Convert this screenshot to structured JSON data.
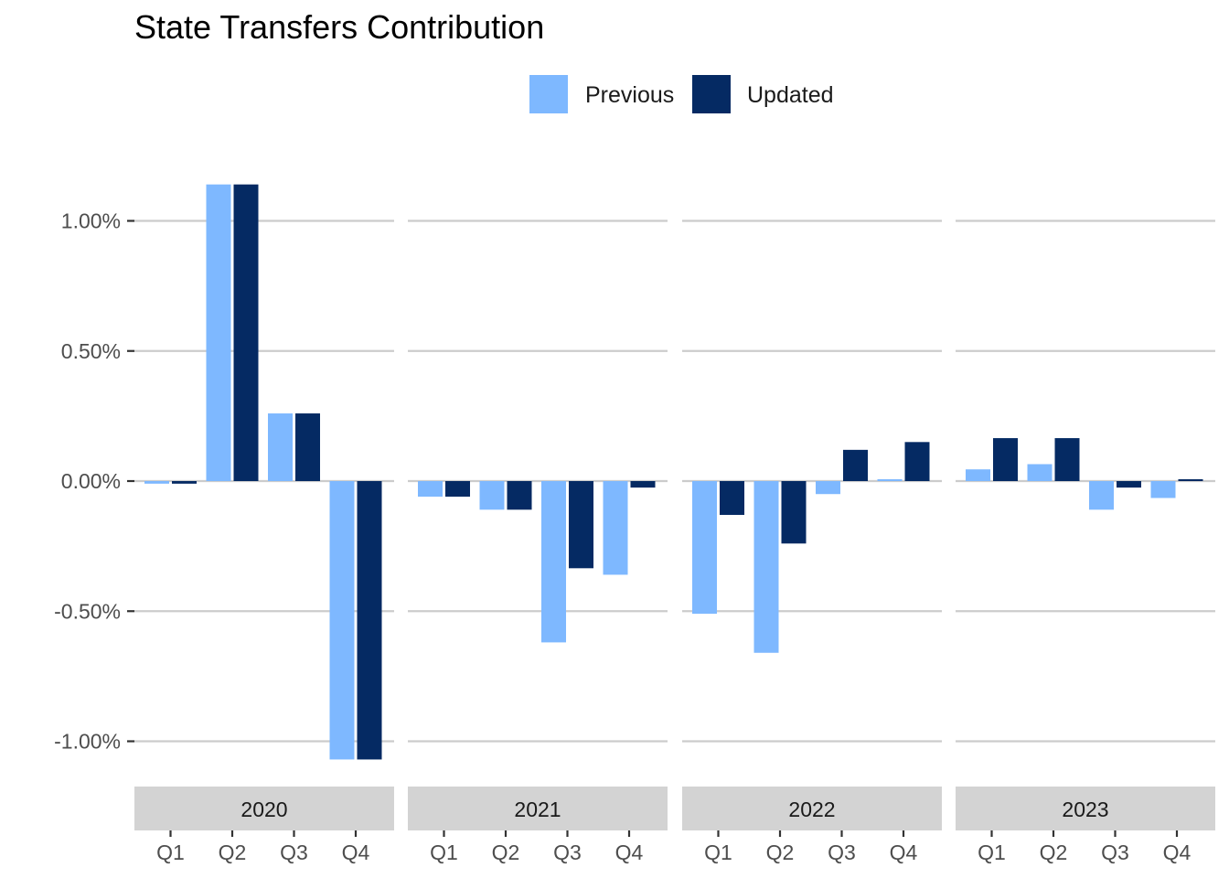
{
  "chart_data": {
    "type": "bar",
    "title": "State Transfers Contribution",
    "xlabel": "",
    "ylabel": "",
    "ylim": [
      -1.15,
      1.3
    ],
    "y_ticks": [
      {
        "value": 1.0,
        "label": "1.00%"
      },
      {
        "value": 0.5,
        "label": "0.50%"
      },
      {
        "value": 0.0,
        "label": "0.00%"
      },
      {
        "value": -0.5,
        "label": "-0.50%"
      },
      {
        "value": -1.0,
        "label": "-1.00%"
      }
    ],
    "grid": true,
    "legend_position": "top",
    "facets": [
      "2020",
      "2021",
      "2022",
      "2023"
    ],
    "categories": [
      "Q1",
      "Q2",
      "Q3",
      "Q4"
    ],
    "series": [
      {
        "name": "Previous",
        "color": "#7eb8ff",
        "values": {
          "2020": [
            -0.01,
            1.14,
            0.26,
            -1.07
          ],
          "2021": [
            -0.06,
            -0.11,
            -0.62,
            -0.36
          ],
          "2022": [
            -0.51,
            -0.66,
            -0.05,
            0.005
          ],
          "2023": [
            0.045,
            0.065,
            -0.11,
            -0.065
          ]
        }
      },
      {
        "name": "Updated",
        "color": "#052a63",
        "values": {
          "2020": [
            -0.01,
            1.14,
            0.26,
            -1.07
          ],
          "2021": [
            -0.06,
            -0.11,
            -0.335,
            -0.025
          ],
          "2022": [
            -0.13,
            -0.24,
            0.12,
            0.15
          ],
          "2023": [
            0.165,
            0.165,
            -0.025,
            0.005
          ]
        }
      }
    ]
  },
  "colors": {
    "grid": "#cccccc",
    "strip_background": "#d3d3d3",
    "tick_text": "#4d4d4d"
  }
}
